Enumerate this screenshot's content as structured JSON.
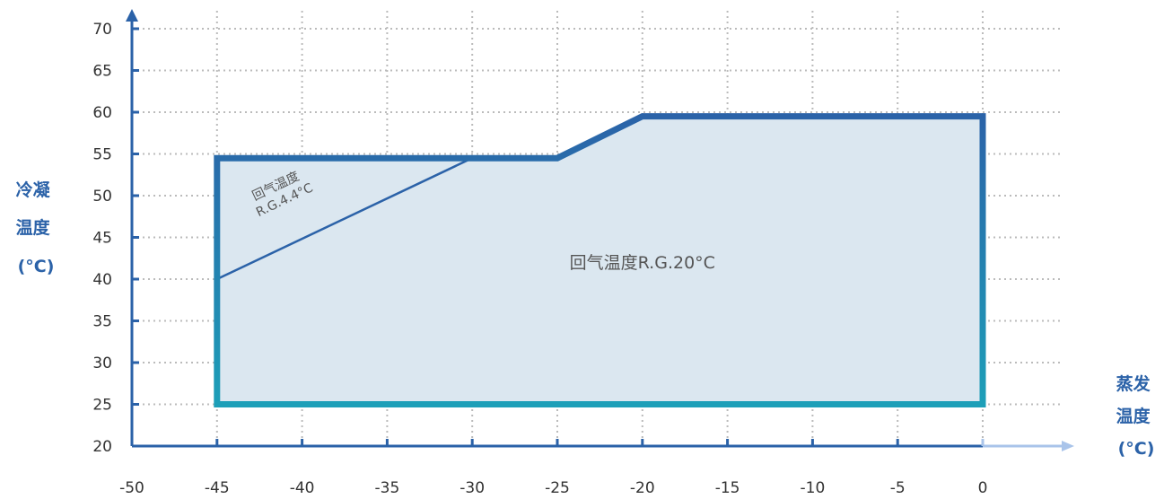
{
  "chart_data": {
    "type": "area",
    "ylabel_lines": [
      "冷凝",
      "温度",
      "(°C)"
    ],
    "xlabel_lines": [
      "蒸发",
      "温度",
      "(°C)"
    ],
    "xlim": [
      -50,
      0
    ],
    "ylim": [
      20,
      70
    ],
    "x_ticks": [
      -50,
      -45,
      -40,
      -35,
      -30,
      -25,
      -20,
      -15,
      -10,
      -5,
      0
    ],
    "y_ticks": [
      20,
      25,
      30,
      35,
      40,
      45,
      50,
      55,
      60,
      65,
      70
    ],
    "grid": true,
    "colors": {
      "axis": "#2b62a8",
      "grid": "#bbbbbb",
      "fill": "#dbe7f0",
      "boundary_top": "#2b62a8",
      "boundary_bottom": "#1d9fb8",
      "inner_line": "#2b62a8",
      "arrow": "#a9c4ea"
    },
    "series": [
      {
        "name": "回气温度R.G.20°C",
        "points": [
          {
            "x": -45,
            "y": 25
          },
          {
            "x": -45,
            "y": 54.5
          },
          {
            "x": -25,
            "y": 54.5
          },
          {
            "x": -20,
            "y": 59.5
          },
          {
            "x": 0,
            "y": 59.5
          },
          {
            "x": 0,
            "y": 25
          }
        ]
      },
      {
        "name_lines": [
          "回气温度",
          "R.G.4.4°C"
        ],
        "points": [
          {
            "x": -45,
            "y": 40
          },
          {
            "x": -30,
            "y": 54.5
          }
        ]
      }
    ]
  }
}
